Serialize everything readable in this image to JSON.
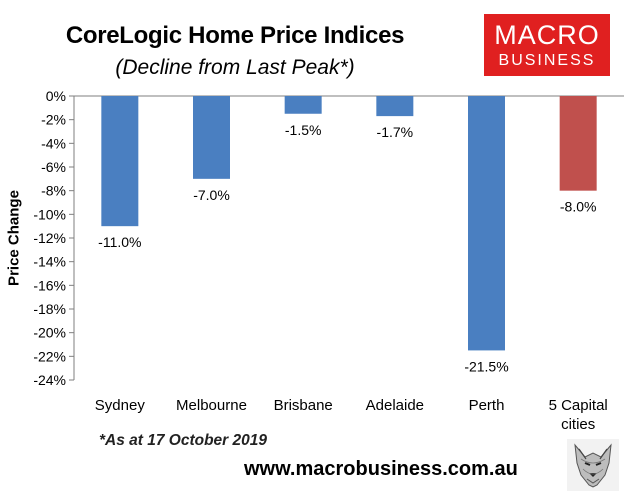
{
  "chart_data": {
    "type": "bar",
    "title": "CoreLogic Home Price Indices",
    "subtitle": "(Decline from Last Peak*)",
    "ylabel": "Price Change",
    "xlabel": "",
    "categories": [
      "Sydney",
      "Melbourne",
      "Brisbane",
      "Adelaide",
      "Perth",
      "5 Capital cities"
    ],
    "values": [
      -11.0,
      -7.0,
      -1.5,
      -1.7,
      -21.5,
      -8.0
    ],
    "data_labels": [
      "-11.0%",
      "-7.0%",
      "-1.5%",
      "-1.7%",
      "-21.5%",
      "-8.0%"
    ],
    "colors": [
      "#4a7fc1",
      "#4a7fc1",
      "#4a7fc1",
      "#4a7fc1",
      "#4a7fc1",
      "#c0504d"
    ],
    "ylim": [
      -24,
      0
    ],
    "yticks": [
      0,
      -2,
      -4,
      -6,
      -8,
      -10,
      -12,
      -14,
      -16,
      -18,
      -20,
      -22,
      -24
    ],
    "ytick_labels": [
      "0%",
      "-2%",
      "-4%",
      "-6%",
      "-8%",
      "-10%",
      "-12%",
      "-14%",
      "-16%",
      "-18%",
      "-20%",
      "-22%",
      "-24%"
    ],
    "grid": false,
    "legend": "none"
  },
  "logo": {
    "line1": "MACRO",
    "line2": "BUSINESS",
    "color": "#e02020"
  },
  "footnote": "*As at 17 October 2019",
  "website": "www.macrobusiness.com.au",
  "wolf_icon": "wolf-head-icon"
}
